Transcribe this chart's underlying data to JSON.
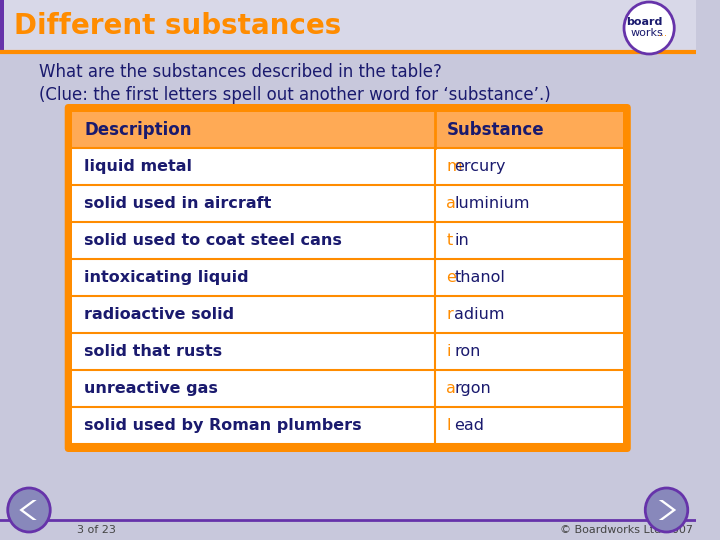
{
  "title": "Different substances",
  "title_color": "#FF8C00",
  "title_bar_bg": "#D8D8E8",
  "header_bg": "#FFAA55",
  "header_text_color": "#1a1a6e",
  "slide_bg": "#C8C8DC",
  "question1": "What are the substances described in the table?",
  "question2": "(Clue: the first letters spell out another word for ‘substance’.)",
  "question_color": "#1a1a6e",
  "table_border_color": "#FF8C00",
  "row_bg": "#FFFFFF",
  "row_text_color": "#1a1a6e",
  "first_letter_color": "#FF8C00",
  "descriptions": [
    "liquid metal",
    "solid used in aircraft",
    "solid used to coat steel cans",
    "intoxicating liquid",
    "radioactive solid",
    "solid that rusts",
    "unreactive gas",
    "solid used by Roman plumbers"
  ],
  "substances": [
    "mercury",
    "aluminium",
    "tin",
    "ethanol",
    "radium",
    "iron",
    "argon",
    "lead"
  ],
  "footer_text": "3 of 23",
  "footer_right": "© Boardworks Ltd 2007",
  "footer_color": "#444444",
  "footer_line_color": "#6633aa",
  "nav_circle_color": "#8888bb",
  "nav_border_color": "#6633aa",
  "logo_circle_color": "#6633aa"
}
